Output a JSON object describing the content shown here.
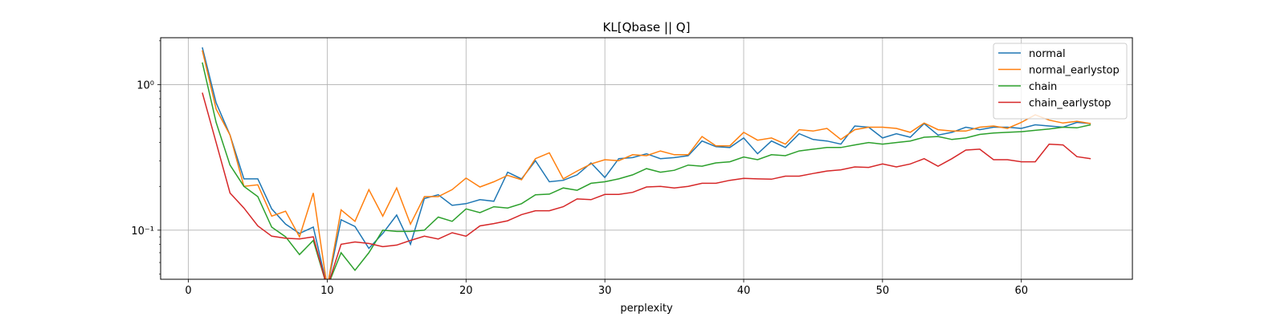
{
  "chart_data": {
    "type": "line",
    "title": "KL[Qbase || Q]",
    "xlabel": "perplexity",
    "ylabel": "",
    "yscale": "log",
    "xlim": [
      -2,
      68
    ],
    "ylim": [
      0.046,
      2.1
    ],
    "xticks": [
      0,
      10,
      20,
      30,
      40,
      50,
      60
    ],
    "xtick_labels": [
      "0",
      "10",
      "20",
      "30",
      "40",
      "50",
      "60"
    ],
    "yticks": [
      0.1,
      1
    ],
    "ytick_labels": [
      "10⁻¹",
      "10⁰"
    ],
    "grid": true,
    "legend_position": "top-right",
    "x": [
      1,
      2,
      3,
      4,
      5,
      6,
      7,
      8,
      9,
      10,
      11,
      12,
      13,
      14,
      15,
      16,
      17,
      18,
      19,
      20,
      21,
      22,
      23,
      24,
      25,
      26,
      27,
      28,
      29,
      30,
      31,
      32,
      33,
      34,
      35,
      36,
      37,
      38,
      39,
      40,
      41,
      42,
      43,
      44,
      45,
      46,
      47,
      48,
      49,
      50,
      51,
      52,
      53,
      54,
      55,
      56,
      57,
      58,
      59,
      60,
      61,
      62,
      63,
      64,
      65
    ],
    "series": [
      {
        "name": "normal",
        "color": "#1f77b4",
        "values": [
          1.8,
          0.75,
          0.45,
          0.225,
          0.225,
          0.14,
          0.11,
          0.095,
          0.105,
          null,
          0.118,
          0.106,
          0.075,
          0.095,
          0.127,
          0.08,
          0.165,
          0.175,
          0.148,
          0.152,
          0.162,
          0.158,
          0.25,
          0.225,
          0.3,
          0.215,
          0.22,
          0.24,
          0.29,
          0.23,
          0.31,
          0.315,
          0.335,
          0.31,
          0.315,
          0.325,
          0.41,
          0.375,
          0.37,
          0.43,
          0.335,
          0.41,
          0.37,
          0.46,
          0.42,
          0.41,
          0.39,
          0.52,
          0.51,
          0.43,
          0.46,
          0.435,
          0.54,
          0.45,
          0.47,
          0.51,
          0.49,
          0.51,
          0.51,
          0.5,
          0.53,
          0.52,
          0.51,
          0.55,
          0.54
        ]
      },
      {
        "name": "normal_earlystop",
        "color": "#ff7f0e",
        "values": [
          1.72,
          0.68,
          0.45,
          0.2,
          0.205,
          0.125,
          0.135,
          0.09,
          0.18,
          null,
          0.138,
          0.115,
          0.19,
          0.125,
          0.195,
          0.11,
          0.17,
          0.17,
          0.19,
          0.228,
          0.198,
          0.215,
          0.238,
          0.222,
          0.31,
          0.34,
          0.225,
          0.255,
          0.285,
          0.305,
          0.3,
          0.33,
          0.325,
          0.35,
          0.33,
          0.33,
          0.44,
          0.38,
          0.38,
          0.47,
          0.415,
          0.43,
          0.39,
          0.49,
          0.48,
          0.5,
          0.42,
          0.49,
          0.51,
          0.51,
          0.5,
          0.47,
          0.545,
          0.49,
          0.48,
          0.48,
          0.51,
          0.52,
          0.5,
          0.55,
          0.62,
          0.57,
          0.545,
          0.56,
          0.54
        ]
      },
      {
        "name": "chain",
        "color": "#2ca02c",
        "values": [
          1.42,
          0.55,
          0.28,
          0.2,
          0.17,
          0.105,
          0.09,
          0.068,
          0.085,
          null,
          0.07,
          0.053,
          0.07,
          0.1,
          0.098,
          0.098,
          0.1,
          0.123,
          0.115,
          0.14,
          0.132,
          0.145,
          0.142,
          0.152,
          0.175,
          0.177,
          0.195,
          0.188,
          0.21,
          0.215,
          0.225,
          0.24,
          0.265,
          0.25,
          0.258,
          0.28,
          0.275,
          0.29,
          0.295,
          0.318,
          0.305,
          0.33,
          0.325,
          0.35,
          0.36,
          0.37,
          0.37,
          0.385,
          0.4,
          0.39,
          0.4,
          0.41,
          0.435,
          0.44,
          0.42,
          0.43,
          0.455,
          0.465,
          0.47,
          0.475,
          0.485,
          0.495,
          0.51,
          0.505,
          0.53
        ]
      },
      {
        "name": "chain_earlystop",
        "color": "#d62728",
        "values": [
          0.88,
          0.4,
          0.18,
          0.142,
          0.107,
          0.091,
          0.088,
          0.087,
          0.09,
          null,
          0.08,
          0.083,
          0.081,
          0.077,
          0.079,
          0.085,
          0.091,
          0.087,
          0.096,
          0.091,
          0.107,
          0.111,
          0.116,
          0.128,
          0.136,
          0.136,
          0.145,
          0.164,
          0.162,
          0.176,
          0.176,
          0.182,
          0.198,
          0.2,
          0.195,
          0.2,
          0.21,
          0.21,
          0.22,
          0.227,
          0.225,
          0.224,
          0.235,
          0.235,
          0.245,
          0.255,
          0.26,
          0.272,
          0.27,
          0.285,
          0.272,
          0.285,
          0.31,
          0.275,
          0.31,
          0.355,
          0.36,
          0.305,
          0.305,
          0.295,
          0.295,
          0.39,
          0.385,
          0.32,
          0.31
        ]
      }
    ]
  }
}
